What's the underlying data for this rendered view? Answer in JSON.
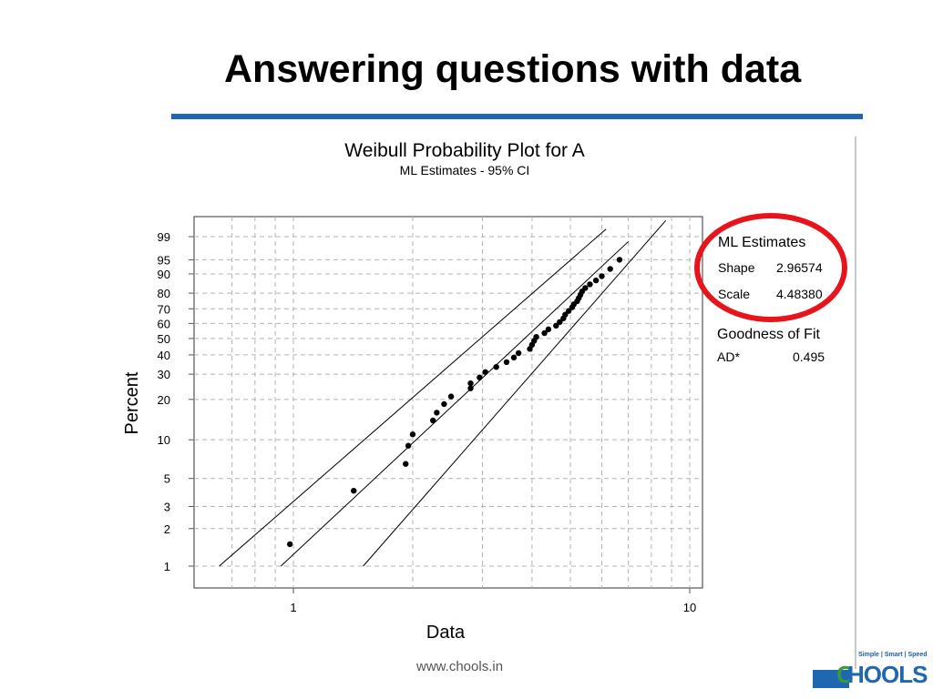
{
  "slide": {
    "title": "Answering questions with data",
    "footer_url": "www.chools.in",
    "logo_tagline": "Simple | Smart | Speed",
    "logo_text": "HOOLS",
    "logo_c": "C"
  },
  "colors": {
    "title_rule": "#1f67b1",
    "highlight_circle": "#e8141c",
    "points": "#000000",
    "grid": "#b4b4b4"
  },
  "chart_data": {
    "type": "scatter",
    "title": "Weibull Probability Plot for A",
    "subtitle": "ML Estimates - 95% CI",
    "xlabel": "Data",
    "ylabel": "Percent",
    "x_scale": "log",
    "y_scale": "weibull",
    "x_ticks": [
      1,
      10
    ],
    "y_ticks": [
      1,
      2,
      3,
      5,
      10,
      20,
      30,
      40,
      50,
      60,
      70,
      80,
      90,
      95,
      99
    ],
    "xlim": [
      0.6,
      11
    ],
    "ylim": [
      0.6,
      99.9
    ],
    "grid": true,
    "series": [
      {
        "kind": "points",
        "x": [
          0.98,
          1.42,
          1.92,
          1.95,
          2.0,
          2.25,
          2.3,
          2.4,
          2.5,
          2.8,
          2.8,
          2.95,
          3.05,
          3.25,
          3.45,
          3.6,
          3.7,
          3.95,
          4.0,
          4.05,
          4.1,
          4.3,
          4.4,
          4.6,
          4.7,
          4.8,
          4.85,
          4.95,
          5.05,
          5.1,
          5.2,
          5.25,
          5.3,
          5.35,
          5.45,
          5.6,
          5.8,
          6.0,
          6.3,
          6.65
        ],
        "y": [
          1.5,
          4,
          6.5,
          9,
          11,
          14,
          16,
          18.5,
          21,
          24,
          26,
          28.5,
          31,
          33.5,
          36,
          38.5,
          41,
          43.5,
          46,
          48.5,
          51,
          53.5,
          56,
          58.5,
          61,
          63.5,
          66,
          68.5,
          71,
          73,
          75,
          77,
          79,
          81,
          83,
          85,
          87,
          89,
          92,
          95
        ]
      },
      {
        "kind": "line",
        "x": [
          0.93,
          7.0
        ],
        "y": [
          1,
          98.5
        ]
      },
      {
        "kind": "line",
        "x": [
          0.65,
          6.15
        ],
        "y": [
          1,
          99.5
        ]
      },
      {
        "kind": "line",
        "x": [
          1.5,
          8.7
        ],
        "y": [
          1,
          99.8
        ]
      }
    ],
    "ml_estimates": {
      "heading": "ML Estimates",
      "shape_label": "Shape",
      "shape_value": "2.96574",
      "scale_label": "Scale",
      "scale_value": "4.48380"
    },
    "goodness_of_fit": {
      "heading": "Goodness of Fit",
      "ad_label": "AD*",
      "ad_value": "0.495"
    }
  }
}
